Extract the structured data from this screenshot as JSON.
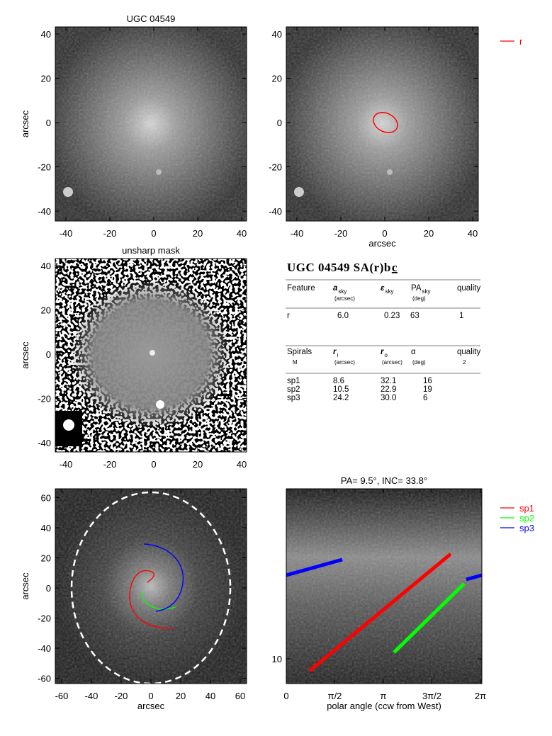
{
  "panels": [
    {
      "title": "UGC 04549",
      "ylabel": "arcsec",
      "xticks": [
        -40,
        -20,
        0,
        20,
        40
      ],
      "yticks": [
        40,
        20,
        0,
        -20,
        -40
      ]
    },
    {
      "xlabel": "arcsec",
      "xticks": [
        -40,
        -20,
        0,
        20,
        40
      ],
      "yticks": [
        40,
        20,
        0,
        -20,
        -40
      ],
      "legend": [
        "r"
      ]
    },
    {
      "title": "unsharp mask",
      "ylabel": "arcsec",
      "xticks": [
        -40,
        -20,
        0,
        20,
        40
      ],
      "yticks": [
        40,
        20,
        0,
        -20,
        -40
      ]
    },
    {
      "ylabel": "arcsec",
      "xlabel": "arcsec",
      "xticks": [
        -60,
        -40,
        -20,
        0,
        20,
        40,
        60
      ],
      "yticks": [
        60,
        40,
        20,
        0,
        -20,
        -40,
        -60
      ]
    },
    {
      "title": "PA=  9.5°, INC=  33.8°",
      "xlabel": "polar angle (ccw from West)",
      "xticks": [
        "0",
        "π/2",
        "π",
        "3π/2",
        "2π"
      ],
      "yticks": [
        10
      ],
      "legend": [
        "sp1",
        "sp2",
        "sp3"
      ]
    }
  ],
  "table": {
    "title": "UGC 04549  SA(r)b",
    "title_suffix": "c",
    "features_header": [
      {
        "main": "Feature"
      },
      {
        "main": "a",
        "sub": "sky",
        "unit": "(arcsec)"
      },
      {
        "main": "ε",
        "sub": "sky"
      },
      {
        "main": "PA",
        "sub": "sky",
        "unit": "(deg)"
      },
      {
        "main": "quality"
      }
    ],
    "features_rows": [
      [
        "r",
        "6.0",
        "0.23",
        "63",
        "1"
      ]
    ],
    "spirals_header": [
      {
        "main": "Spirals",
        "unit": "M"
      },
      {
        "main": "r",
        "sub": "i",
        "unit": "(arcsec)"
      },
      {
        "main": "r",
        "sub": "o",
        "unit": "(arcsec)"
      },
      {
        "main": "α",
        "unit": "(deg)"
      },
      {
        "main": "quality",
        "unit": "2"
      }
    ],
    "spirals_rows": [
      [
        "sp1",
        "8.6",
        "32.1",
        "16"
      ],
      [
        "sp2",
        "10.5",
        "22.9",
        "19"
      ],
      [
        "sp3",
        "24.2",
        "30.0",
        "6"
      ]
    ]
  }
}
